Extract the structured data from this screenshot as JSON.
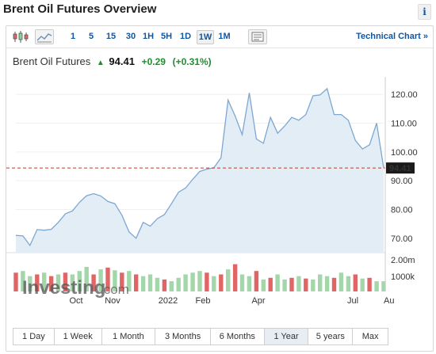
{
  "header": {
    "title": "Brent Oil Futures Overview",
    "info_label": "i"
  },
  "toolbar": {
    "intervals": [
      "1",
      "5",
      "15",
      "30",
      "1H",
      "5H",
      "1D",
      "1W",
      "1M"
    ],
    "active_interval": "1W",
    "technical_chart_label": "Technical Chart »"
  },
  "quote": {
    "name": "Brent Oil Futures",
    "price": "94.41",
    "change": "+0.29",
    "change_pct": "(+0.31%)"
  },
  "watermark": {
    "brand": "Investing",
    "suffix": ".com"
  },
  "range_buttons": [
    "1 Day",
    "1 Week",
    "1 Month",
    "3 Months",
    "6 Months",
    "1 Year",
    "5 years",
    "Max"
  ],
  "active_range": "1 Year",
  "colors": {
    "line": "#7da7d1",
    "area": "#e3edf6",
    "up_volume": "#a3d6a9",
    "down_volume": "#e06666",
    "reference_line": "#c0392b",
    "link": "#1256a0"
  },
  "chart_data": {
    "type": "area",
    "y_ticks": [
      "70.00",
      "80.00",
      "90.00",
      "100.00",
      "110.00",
      "120.00"
    ],
    "ylim": [
      65,
      125
    ],
    "x_ticks": [
      "Oct",
      "Nov",
      "2022",
      "Feb",
      "Apr",
      "Jul",
      "Au"
    ],
    "last_price_label": "94.41",
    "reference_value": 94.41,
    "volume_ticks": [
      "2.00m",
      "1000k"
    ],
    "values": [
      71.0,
      70.8,
      67.5,
      73.0,
      72.8,
      73.1,
      75.5,
      78.5,
      79.5,
      82.5,
      84.8,
      85.5,
      84.7,
      82.8,
      82.0,
      78.0,
      72.2,
      70.0,
      75.5,
      74.2,
      76.8,
      78.2,
      82.0,
      86.0,
      87.5,
      90.5,
      93.2,
      94.0,
      94.5,
      98.0,
      118.0,
      112.5,
      106.0,
      120.5,
      104.5,
      103.0,
      112.0,
      106.5,
      109.0,
      112.0,
      111.0,
      113.0,
      119.5,
      119.8,
      122.0,
      113.0,
      113.0,
      111.0,
      104.0,
      101.0,
      102.5,
      110.0,
      94.41
    ],
    "volume_values": [
      0.55,
      0.6,
      0.45,
      0.5,
      0.55,
      0.45,
      0.5,
      0.55,
      0.5,
      0.6,
      0.72,
      0.5,
      0.65,
      0.7,
      0.62,
      0.55,
      0.6,
      0.5,
      0.45,
      0.5,
      0.4,
      0.35,
      0.3,
      0.4,
      0.5,
      0.55,
      0.6,
      0.55,
      0.45,
      0.5,
      0.65,
      0.8,
      0.5,
      0.45,
      0.6,
      0.35,
      0.4,
      0.5,
      0.35,
      0.4,
      0.45,
      0.38,
      0.35,
      0.5,
      0.45,
      0.4,
      0.55,
      0.45,
      0.5,
      0.38,
      0.4,
      0.3,
      0.3
    ],
    "volume_direction": [
      "down",
      "up",
      "up",
      "down",
      "up",
      "down",
      "up",
      "down",
      "up",
      "up",
      "up",
      "down",
      "up",
      "down",
      "up",
      "down",
      "up",
      "down",
      "up",
      "up",
      "up",
      "down",
      "up",
      "up",
      "up",
      "up",
      "up",
      "down",
      "up",
      "down",
      "up",
      "down",
      "up",
      "up",
      "down",
      "up",
      "down",
      "up",
      "up",
      "down",
      "up",
      "down",
      "up",
      "up",
      "up",
      "down",
      "up",
      "up",
      "down",
      "up",
      "down",
      "up",
      "up"
    ]
  }
}
